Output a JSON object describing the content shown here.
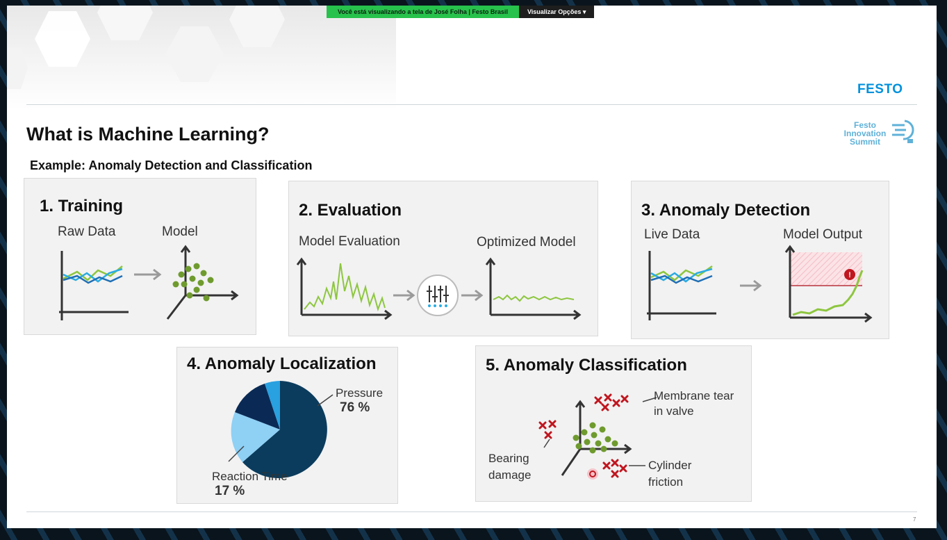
{
  "share_bar": {
    "notice": "Você está visualizando a tela de José Folha | Festo Brasil",
    "options_label": "Visualizar Opções",
    "options_icon": "chevron-down-icon"
  },
  "brand": {
    "logo": "FESTO",
    "color": "#0091dc"
  },
  "summit": {
    "line1": "Festo",
    "line2": "Innovation",
    "line3": "Summit"
  },
  "slide": {
    "title": "What is Machine Learning?",
    "subtitle": "Example: Anomaly Detection and Classification",
    "page_number": "7"
  },
  "panels": {
    "training": {
      "title": "1. Training",
      "left_label": "Raw Data",
      "right_label": "Model"
    },
    "evaluation": {
      "title": "2. Evaluation",
      "left_label": "Model Evaluation",
      "right_label": "Optimized Model"
    },
    "detection": {
      "title": "3. Anomaly Detection",
      "left_label": "Live Data",
      "right_label": "Model Output"
    },
    "localization": {
      "title": "4. Anomaly Localization",
      "pressure_label": "Pressure",
      "pressure_value": "76 %",
      "reaction_label": "Reaction Time",
      "reaction_value": "17 %"
    },
    "classification": {
      "title": "5. Anomaly Classification",
      "membrane_line1": "Membrane tear",
      "membrane_line2": "in valve",
      "bearing_line1": "Bearing",
      "bearing_line2": "damage",
      "cylinder_line1": "Cylinder",
      "cylinder_line2": "friction"
    }
  },
  "colors": {
    "line_green": "#8dc63f",
    "line_blue": "#1f6fb5",
    "line_cyan": "#29abe2",
    "dot_green": "#6f9b2e",
    "anomaly_red": "#c0161f",
    "pie_dark": "#0b3c5d",
    "pie_light": "#8fd0f5",
    "pie_navy": "#0a2a55",
    "pie_mid": "#29a0e0"
  }
}
